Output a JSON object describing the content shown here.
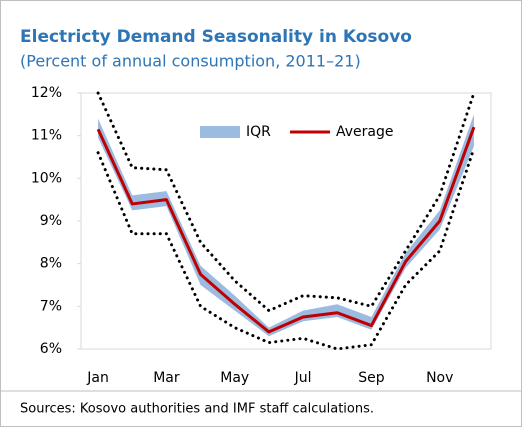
{
  "chart_data": {
    "type": "line",
    "title": "Electricty Demand Seasonality in Kosovo",
    "subtitle": "(Percent of annual consumption, 2011–21)",
    "source": "Sources: Kosovo authorities and IMF staff calculations.",
    "categories": [
      "Jan",
      null,
      "Mar",
      null,
      "May",
      null,
      "Jul",
      null,
      "Sep",
      null,
      "Nov",
      null
    ],
    "bands": [
      {
        "name": "IQR",
        "color": "#9bbbe0",
        "low": [
          10.95,
          9.25,
          9.35,
          7.5,
          6.9,
          6.3,
          6.65,
          6.75,
          6.45,
          7.9,
          8.8,
          10.75
        ],
        "high": [
          11.4,
          9.6,
          9.7,
          7.95,
          7.25,
          6.5,
          6.9,
          7.05,
          6.75,
          8.25,
          9.25,
          11.5
        ]
      }
    ],
    "series": [
      {
        "name": "Average",
        "color": "#c00000",
        "values": [
          11.15,
          9.4,
          9.5,
          7.75,
          7.05,
          6.4,
          6.75,
          6.85,
          6.55,
          8.05,
          9.0,
          11.2
        ]
      }
    ],
    "range_lines": [
      {
        "color": "#000000",
        "style": "dotted",
        "values": [
          12.0,
          10.25,
          10.2,
          8.5,
          7.6,
          6.9,
          7.25,
          7.2,
          7.0,
          8.3,
          9.6,
          12.0
        ]
      },
      {
        "color": "#000000",
        "style": "dotted",
        "values": [
          10.6,
          8.7,
          8.7,
          7.0,
          6.5,
          6.15,
          6.25,
          6.0,
          6.1,
          7.5,
          8.3,
          10.7
        ]
      }
    ],
    "ylim": [
      6,
      12
    ],
    "yticks": [
      {
        "value": 6,
        "label": "6%"
      },
      {
        "value": 7,
        "label": "7%"
      },
      {
        "value": 8,
        "label": "8%"
      },
      {
        "value": 9,
        "label": "9%"
      },
      {
        "value": 10,
        "label": "10%"
      },
      {
        "value": 11,
        "label": "11%"
      },
      {
        "value": 12,
        "label": "12%"
      }
    ],
    "legend": "top-center"
  }
}
